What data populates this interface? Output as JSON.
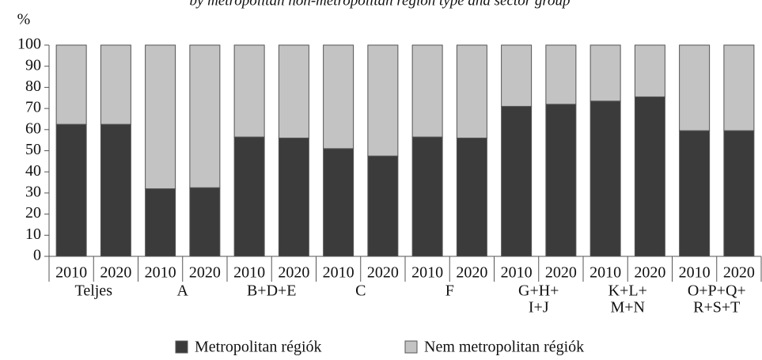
{
  "chart_data": {
    "type": "stacked-bar",
    "title": "by metropolitan non-metropolitan region type and sector group",
    "y_label": "%",
    "categories": [
      "2010",
      "2020",
      "2010",
      "2020",
      "2010",
      "2020",
      "2010",
      "2020",
      "2010",
      "2020",
      "2010",
      "2020",
      "2010",
      "2020",
      "2010",
      "2020"
    ],
    "groups": [
      [
        "Teljes"
      ],
      [
        "A"
      ],
      [
        "B+D+E"
      ],
      [
        "C"
      ],
      [
        "F"
      ],
      [
        "G+H+",
        "I+J"
      ],
      [
        "K+L+",
        "M+N"
      ],
      [
        "O+P+Q+",
        "R+S+T"
      ]
    ],
    "series": [
      {
        "name": "Metropolitan régiók",
        "color": "#3b3b3b",
        "values": [
          62.5,
          62.5,
          32,
          32.5,
          56.5,
          56,
          51,
          47.5,
          56.5,
          56,
          71,
          72,
          73.5,
          75.5,
          59.5,
          59.5
        ]
      },
      {
        "name": "Nem metropolitan régiók",
        "color": "#c3c3c3",
        "values": [
          37.5,
          37.5,
          68,
          67.5,
          43.5,
          44,
          49,
          52.5,
          43.5,
          44,
          29,
          28,
          26.5,
          24.5,
          40.5,
          40.5
        ]
      }
    ],
    "ylim": [
      0,
      100
    ],
    "yticks": [
      0,
      10,
      20,
      30,
      40,
      50,
      60,
      70,
      80,
      90,
      100
    ]
  }
}
